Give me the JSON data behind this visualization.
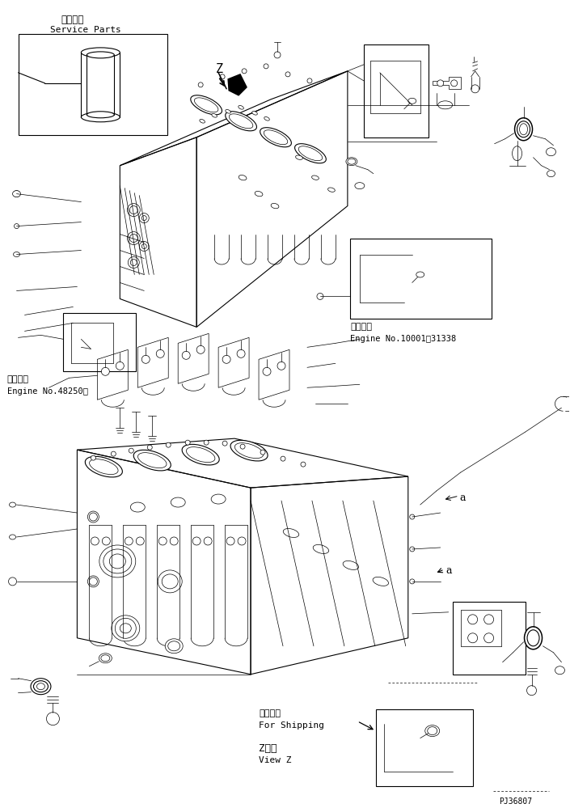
{
  "background_color": "#ffffff",
  "line_color": "#000000",
  "part_id": "PJ36807",
  "service_parts_label_jp": "補給専用",
  "service_parts_label_en": "Service Parts",
  "engine_no1_jp": "適用号機",
  "engine_no1_en": "Engine No.10001～31338",
  "engine_no2_jp": "適用号機",
  "engine_no2_en": "Engine No.48250～",
  "shipping_jp": "運搜部品",
  "shipping_en": "For Shipping",
  "view_z_jp": "Z　視",
  "view_z_en": "View Z",
  "figsize": [
    7.05,
    9.99
  ],
  "dpi": 100
}
